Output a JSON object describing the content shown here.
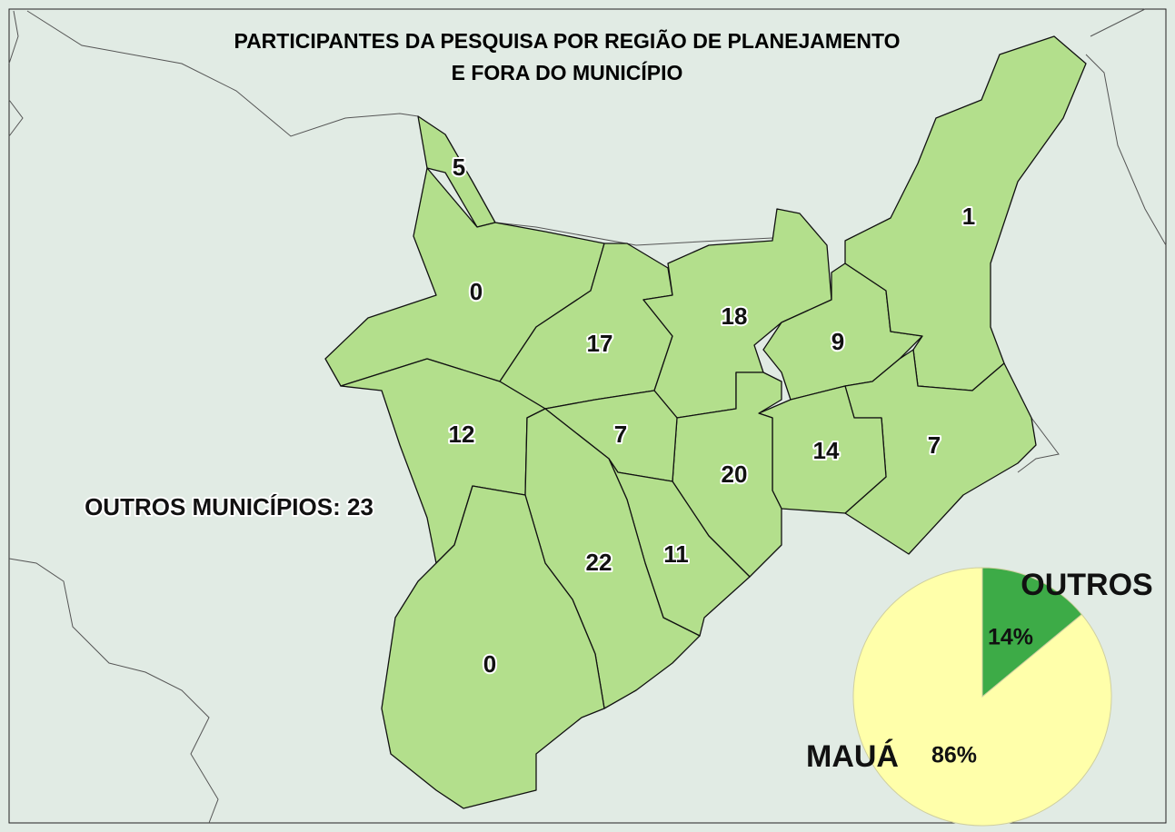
{
  "title_lines": [
    "PARTICIPANTES DA PESQUISA POR REGIÃO DE PLANEJAMENTO",
    "E FORA DO MUNICÍPIO"
  ],
  "regions": [
    5,
    0,
    17,
    18,
    9,
    1,
    7,
    14,
    20,
    7,
    12,
    11,
    22,
    0
  ],
  "outside": {
    "label": "OUTROS MUNICÍPIOS:",
    "value": 23
  },
  "chart_data": {
    "type": "pie",
    "categories": [
      "OUTROS",
      "MAUÁ"
    ],
    "values": [
      14,
      86
    ],
    "value_labels": [
      "14%",
      "86%"
    ],
    "colors": [
      "#3dab47",
      "#ffffaa"
    ]
  }
}
